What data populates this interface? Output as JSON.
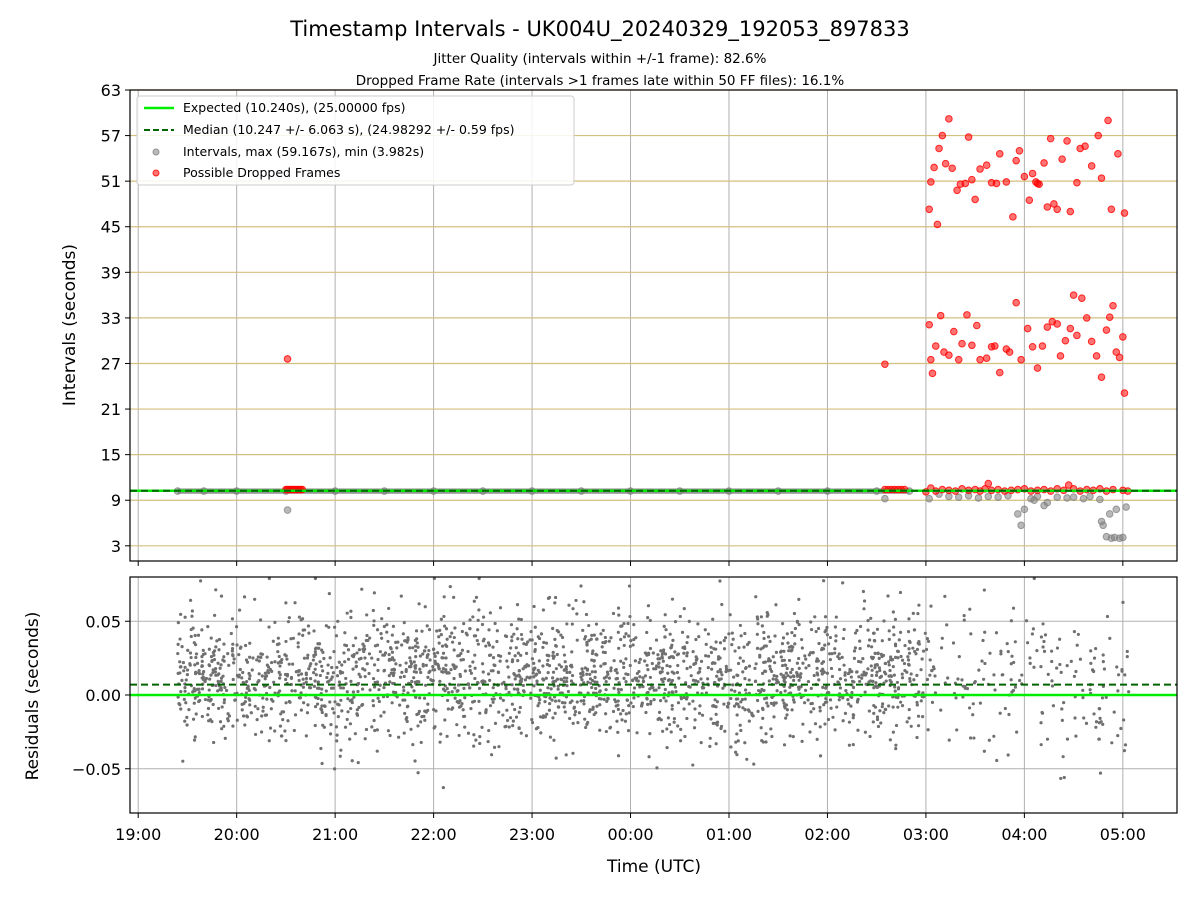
{
  "chart_data": [
    {
      "type": "scatter",
      "title": "Timestamp Intervals - UK004U_20240329_192053_897833",
      "subtitle_lines": [
        "Jitter Quality (intervals within +/-1 frame): 82.6%",
        "Dropped Frame Rate (intervals >1 frames late within 50 FF files): 16.1%"
      ],
      "ylabel": "Intervals (seconds)",
      "ylim": [
        1,
        63
      ],
      "yticks": [
        3,
        9,
        15,
        21,
        27,
        33,
        39,
        45,
        51,
        57,
        63
      ],
      "xlim": [
        "18:55",
        "05:33"
      ],
      "xticks": [
        "19:00",
        "20:00",
        "21:00",
        "22:00",
        "23:00",
        "00:00",
        "01:00",
        "02:00",
        "03:00",
        "04:00",
        "05:00"
      ],
      "grid": true,
      "legend_position": "top-left",
      "expected_value": 10.24,
      "median_value": 10.247,
      "legend": [
        "Expected (10.240s), (25.00000 fps)",
        "Median (10.247 +/- 6.063 s), (24.98292 +/- 0.59 fps)",
        "Intervals, max (59.167s), min (3.982s)",
        "Possible Dropped Frames"
      ],
      "colors": {
        "expected": "#00ee00",
        "median": "#006400",
        "intervals": "#808080",
        "dropped": "#ff0000",
        "hgrid": "#d4bf7f"
      },
      "series": [
        {
          "name": "Intervals, max (59.167s), min (3.982s)",
          "points": [
            [
              "19:24",
              10.2
            ],
            [
              "19:40",
              10.2
            ],
            [
              "20:00",
              10.2
            ],
            [
              "20:30",
              10.2
            ],
            [
              "20:31",
              7.7
            ],
            [
              "21:00",
              10.2
            ],
            [
              "21:30",
              10.2
            ],
            [
              "22:00",
              10.2
            ],
            [
              "22:30",
              10.2
            ],
            [
              "23:00",
              10.2
            ],
            [
              "23:30",
              10.2
            ],
            [
              "00:00",
              10.2
            ],
            [
              "00:30",
              10.2
            ],
            [
              "01:00",
              10.2
            ],
            [
              "01:30",
              10.2
            ],
            [
              "02:00",
              10.2
            ],
            [
              "02:30",
              10.2
            ],
            [
              "02:35",
              9.2
            ],
            [
              "02:50",
              10.2
            ],
            [
              "03:02",
              9.2
            ],
            [
              "03:08",
              9.8
            ],
            [
              "03:14",
              9.5
            ],
            [
              "03:20",
              9.4
            ],
            [
              "03:26",
              9.6
            ],
            [
              "03:32",
              9.3
            ],
            [
              "03:38",
              9.5
            ],
            [
              "03:44",
              9.4
            ],
            [
              "03:50",
              9.6
            ],
            [
              "03:56",
              7.2
            ],
            [
              "03:58",
              5.7
            ],
            [
              "04:00",
              7.8
            ],
            [
              "04:04",
              9.2
            ],
            [
              "04:06",
              9.0
            ],
            [
              "04:08",
              9.5
            ],
            [
              "04:12",
              8.3
            ],
            [
              "04:14",
              8.7
            ],
            [
              "04:20",
              9.4
            ],
            [
              "04:26",
              9.3
            ],
            [
              "04:30",
              9.4
            ],
            [
              "04:36",
              9.2
            ],
            [
              "04:40",
              9.5
            ],
            [
              "04:46",
              9.1
            ],
            [
              "04:47",
              6.2
            ],
            [
              "04:48",
              5.7
            ],
            [
              "04:50",
              4.2
            ],
            [
              "04:52",
              7.2
            ],
            [
              "04:53",
              4.0
            ],
            [
              "04:55",
              4.1
            ],
            [
              "04:56",
              7.8
            ],
            [
              "04:58",
              4.0
            ],
            [
              "05:00",
              4.1
            ],
            [
              "05:02",
              8.1
            ]
          ]
        },
        {
          "name": "Possible Dropped Frames",
          "points": [
            [
              "20:31",
              27.6
            ],
            [
              "20:30",
              10.4
            ],
            [
              "20:31",
              10.4
            ],
            [
              "20:32",
              10.4
            ],
            [
              "20:33",
              10.4
            ],
            [
              "20:34",
              10.4
            ],
            [
              "20:35",
              10.4
            ],
            [
              "20:36",
              10.4
            ],
            [
              "20:37",
              10.4
            ],
            [
              "20:38",
              10.4
            ],
            [
              "20:39",
              10.4
            ],
            [
              "20:40",
              10.4
            ],
            [
              "02:35",
              26.9
            ],
            [
              "02:35",
              10.4
            ],
            [
              "02:37",
              10.4
            ],
            [
              "02:39",
              10.4
            ],
            [
              "02:41",
              10.4
            ],
            [
              "02:43",
              10.4
            ],
            [
              "02:45",
              10.4
            ],
            [
              "02:47",
              10.4
            ],
            [
              "03:02",
              47.3
            ],
            [
              "03:03",
              50.9
            ],
            [
              "03:05",
              52.8
            ],
            [
              "03:08",
              55.3
            ],
            [
              "03:07",
              45.3
            ],
            [
              "03:10",
              57.0
            ],
            [
              "03:12",
              53.3
            ],
            [
              "03:14",
              59.2
            ],
            [
              "03:16",
              52.7
            ],
            [
              "03:19",
              49.8
            ],
            [
              "03:21",
              50.6
            ],
            [
              "03:24",
              50.7
            ],
            [
              "03:26",
              56.8
            ],
            [
              "03:28",
              51.2
            ],
            [
              "03:30",
              48.6
            ],
            [
              "03:33",
              52.6
            ],
            [
              "03:37",
              53.1
            ],
            [
              "03:40",
              50.8
            ],
            [
              "03:43",
              50.7
            ],
            [
              "03:45",
              54.6
            ],
            [
              "03:49",
              50.9
            ],
            [
              "03:53",
              46.3
            ],
            [
              "03:55",
              53.7
            ],
            [
              "03:57",
              55.0
            ],
            [
              "04:00",
              51.6
            ],
            [
              "04:03",
              48.5
            ],
            [
              "04:05",
              52.0
            ],
            [
              "04:07",
              50.9
            ],
            [
              "04:08",
              50.7
            ],
            [
              "04:09",
              50.6
            ],
            [
              "04:12",
              53.4
            ],
            [
              "04:14",
              47.6
            ],
            [
              "04:16",
              56.6
            ],
            [
              "04:18",
              48.0
            ],
            [
              "04:20",
              47.3
            ],
            [
              "04:23",
              53.9
            ],
            [
              "04:26",
              56.3
            ],
            [
              "04:28",
              47.0
            ],
            [
              "04:32",
              50.8
            ],
            [
              "04:34",
              55.3
            ],
            [
              "04:37",
              55.6
            ],
            [
              "04:41",
              53.0
            ],
            [
              "04:45",
              57.0
            ],
            [
              "04:47",
              51.4
            ],
            [
              "04:51",
              59.0
            ],
            [
              "04:53",
              47.3
            ],
            [
              "04:57",
              54.6
            ],
            [
              "05:01",
              46.8
            ],
            [
              "03:02",
              32.1
            ],
            [
              "03:03",
              27.5
            ],
            [
              "03:04",
              25.7
            ],
            [
              "03:06",
              29.3
            ],
            [
              "03:09",
              33.3
            ],
            [
              "03:11",
              28.5
            ],
            [
              "03:14",
              28.1
            ],
            [
              "03:17",
              31.2
            ],
            [
              "03:20",
              27.5
            ],
            [
              "03:22",
              29.6
            ],
            [
              "03:25",
              33.4
            ],
            [
              "03:28",
              29.4
            ],
            [
              "03:31",
              32.0
            ],
            [
              "03:33",
              27.5
            ],
            [
              "03:37",
              27.7
            ],
            [
              "03:40",
              29.2
            ],
            [
              "03:42",
              29.3
            ],
            [
              "03:45",
              25.8
            ],
            [
              "03:49",
              28.9
            ],
            [
              "03:51",
              28.5
            ],
            [
              "03:55",
              35.0
            ],
            [
              "03:58",
              27.5
            ],
            [
              "04:02",
              31.6
            ],
            [
              "04:05",
              29.2
            ],
            [
              "04:08",
              26.4
            ],
            [
              "04:11",
              29.3
            ],
            [
              "04:14",
              31.8
            ],
            [
              "04:17",
              32.5
            ],
            [
              "04:20",
              32.2
            ],
            [
              "04:22",
              28.0
            ],
            [
              "04:25",
              30.0
            ],
            [
              "04:28",
              31.6
            ],
            [
              "04:30",
              36.0
            ],
            [
              "04:32",
              30.7
            ],
            [
              "04:35",
              35.6
            ],
            [
              "04:38",
              33.0
            ],
            [
              "04:41",
              29.9
            ],
            [
              "04:44",
              28.0
            ],
            [
              "04:47",
              25.2
            ],
            [
              "04:50",
              31.4
            ],
            [
              "04:52",
              33.1
            ],
            [
              "04:54",
              34.6
            ],
            [
              "04:56",
              28.5
            ],
            [
              "04:58",
              27.8
            ],
            [
              "05:00",
              30.5
            ],
            [
              "05:01",
              23.1
            ],
            [
              "03:00",
              10.1
            ],
            [
              "03:03",
              10.6
            ],
            [
              "03:06",
              10.2
            ],
            [
              "03:10",
              10.4
            ],
            [
              "03:14",
              10.3
            ],
            [
              "03:18",
              10.2
            ],
            [
              "03:22",
              10.5
            ],
            [
              "03:26",
              10.3
            ],
            [
              "03:30",
              10.4
            ],
            [
              "03:33",
              10.2
            ],
            [
              "03:36",
              10.5
            ],
            [
              "03:38",
              11.2
            ],
            [
              "03:40",
              10.3
            ],
            [
              "03:44",
              10.4
            ],
            [
              "03:48",
              10.2
            ],
            [
              "03:52",
              10.3
            ],
            [
              "03:56",
              10.4
            ],
            [
              "04:00",
              10.5
            ],
            [
              "04:04",
              10.2
            ],
            [
              "04:08",
              10.3
            ],
            [
              "04:12",
              10.4
            ],
            [
              "04:16",
              10.2
            ],
            [
              "04:20",
              10.5
            ],
            [
              "04:24",
              10.3
            ],
            [
              "04:27",
              11.0
            ],
            [
              "04:30",
              10.5
            ],
            [
              "04:34",
              10.2
            ],
            [
              "04:38",
              10.4
            ],
            [
              "04:42",
              10.3
            ],
            [
              "04:46",
              10.5
            ],
            [
              "04:50",
              10.2
            ],
            [
              "04:54",
              10.4
            ],
            [
              "05:00",
              10.3
            ],
            [
              "05:03",
              10.2
            ]
          ]
        }
      ]
    },
    {
      "type": "scatter",
      "ylabel": "Residuals (seconds)",
      "xlabel": "Time (UTC)",
      "ylim": [
        -0.08,
        0.08
      ],
      "yticks": [
        "0.05",
        "0.00",
        "−0.05"
      ],
      "ytick_values": [
        0.05,
        0.0,
        -0.05
      ],
      "xlim": [
        "18:55",
        "05:33"
      ],
      "xticks": [
        "19:00",
        "20:00",
        "21:00",
        "22:00",
        "23:00",
        "00:00",
        "01:00",
        "02:00",
        "03:00",
        "04:00",
        "05:00"
      ],
      "grid": true,
      "expected_residual": 0.0,
      "median_residual": 0.007,
      "residual_spread_sd": 0.022,
      "colors": {
        "expected": "#00ee00",
        "median": "#006400",
        "points": "#707070"
      }
    }
  ]
}
